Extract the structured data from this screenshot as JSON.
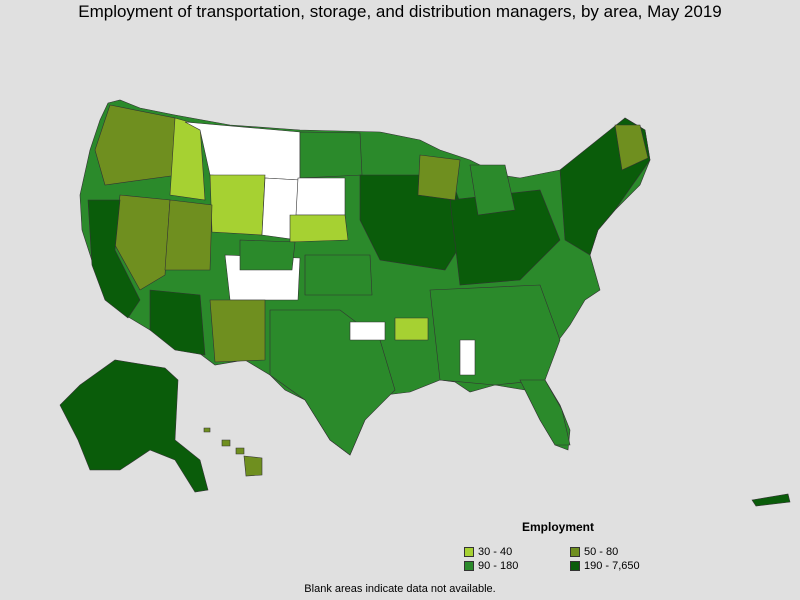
{
  "title": "Employment of transportation, storage, and distribution managers, by area, May 2019",
  "legend": {
    "title": "Employment",
    "items": [
      {
        "label": "30 - 40",
        "color": "#a6d132"
      },
      {
        "label": "50 - 80",
        "color": "#6f8f1f"
      },
      {
        "label": "90 - 180",
        "color": "#2b8a2b"
      },
      {
        "label": "190 - 7,650",
        "color": "#0a5c0a"
      }
    ]
  },
  "note": "Blank areas indicate data not available.",
  "colors": {
    "background": "#e0e0e0",
    "no_data": "#ffffff",
    "border": "#333333"
  }
}
